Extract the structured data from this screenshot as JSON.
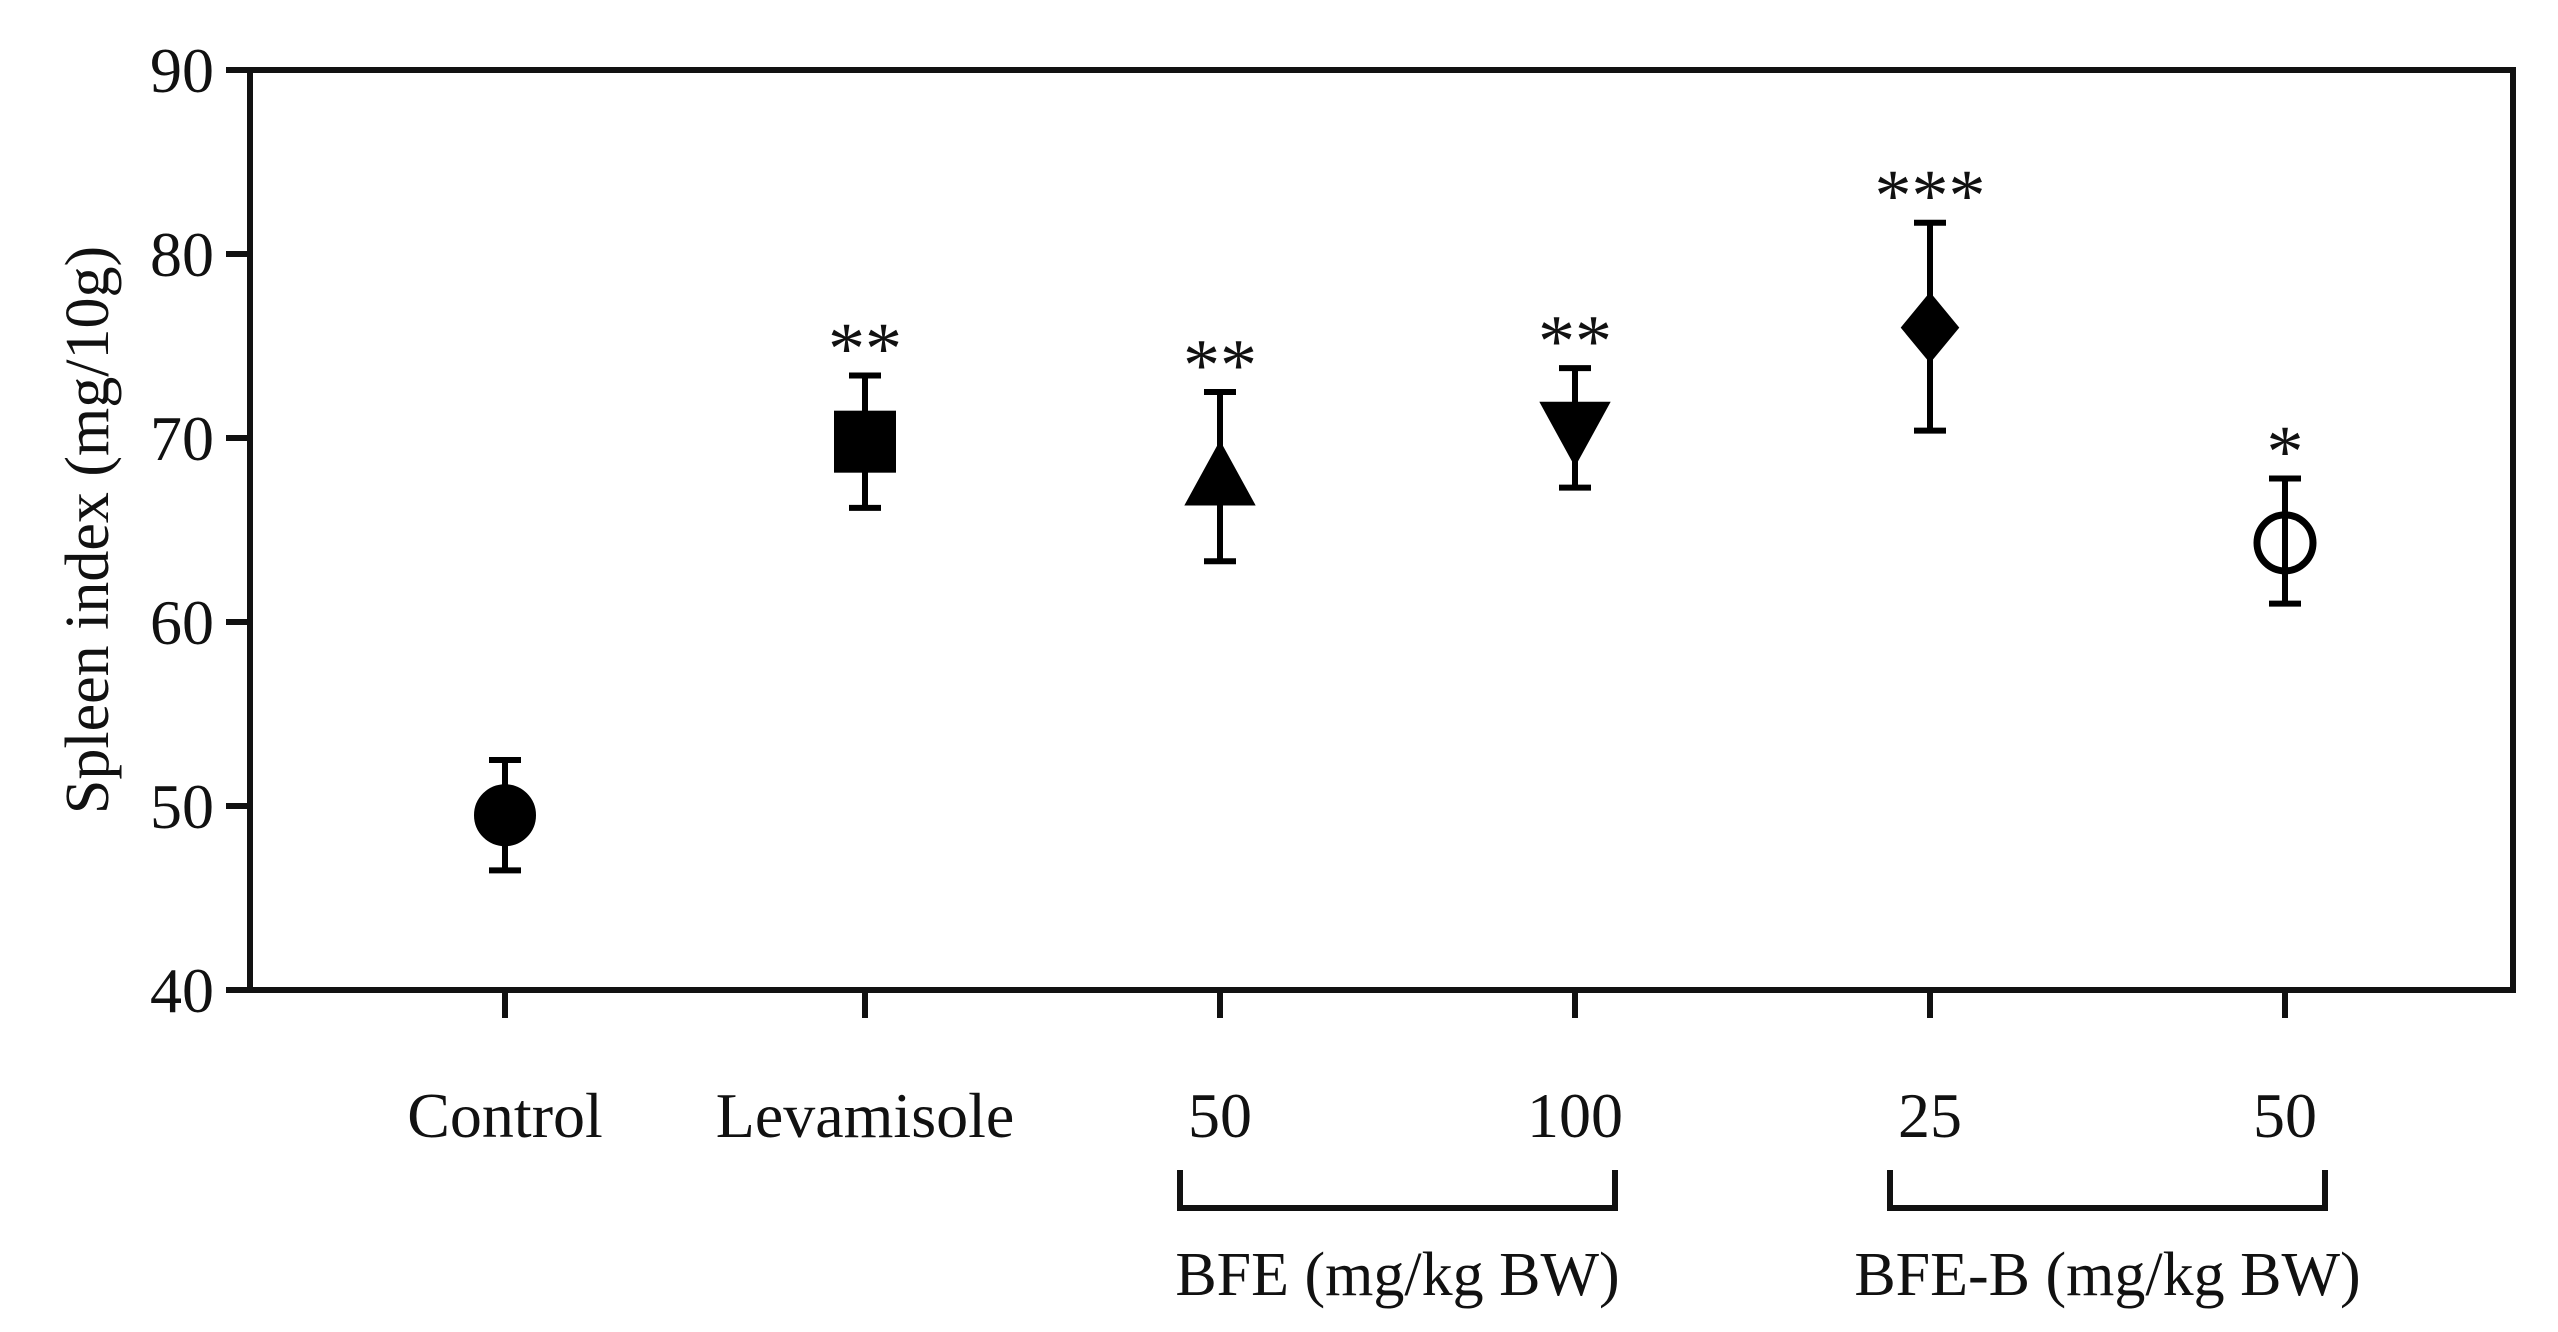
{
  "chart_data": {
    "type": "scatter",
    "ylabel": "Spleen index (mg/10g)",
    "ylim": [
      40,
      90
    ],
    "yticks": [
      40,
      50,
      60,
      70,
      80,
      90
    ],
    "categories": [
      "Control",
      "Levamisole",
      "50",
      "100",
      "25",
      "50"
    ],
    "groups": [
      {
        "label": "BFE (mg/kg BW)",
        "category_indices": [
          2,
          3
        ]
      },
      {
        "label": "BFE-B (mg/kg BW)",
        "category_indices": [
          4,
          5
        ]
      }
    ],
    "points": [
      {
        "category": "Control",
        "mean": 49.5,
        "err_low": 46.5,
        "err_high": 52.5,
        "marker": "circle",
        "filled": true,
        "significance": ""
      },
      {
        "category": "Levamisole",
        "mean": 69.8,
        "err_low": 66.2,
        "err_high": 73.4,
        "marker": "square",
        "filled": true,
        "significance": "**"
      },
      {
        "category": "50",
        "mean": 67.8,
        "err_low": 63.3,
        "err_high": 72.5,
        "marker": "triangle-up",
        "filled": true,
        "significance": "**"
      },
      {
        "category": "100",
        "mean": 70.5,
        "err_low": 67.3,
        "err_high": 73.8,
        "marker": "triangle-down",
        "filled": true,
        "significance": "**"
      },
      {
        "category": "25",
        "mean": 76.0,
        "err_low": 70.4,
        "err_high": 81.7,
        "marker": "diamond",
        "filled": true,
        "significance": "***"
      },
      {
        "category": "50",
        "mean": 64.3,
        "err_low": 61.0,
        "err_high": 67.8,
        "marker": "circle",
        "filled": false,
        "significance": "*"
      }
    ],
    "colors": {
      "marker": "#000000",
      "axis": "#111111"
    }
  }
}
